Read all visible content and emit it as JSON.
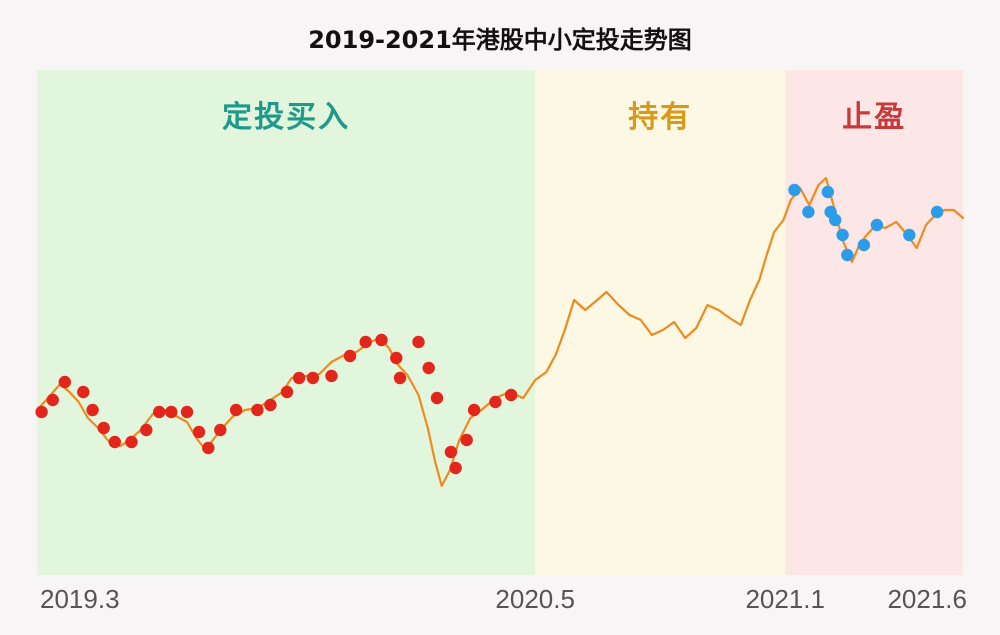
{
  "chart_data": {
    "type": "line",
    "title": "2019-2021年港股中小定投走势图",
    "x_ticks": [
      {
        "label": "2019.3",
        "x": 0
      },
      {
        "label": "2020.5",
        "x": 0.538
      },
      {
        "label": "2021.1",
        "x": 0.808
      },
      {
        "label": "2021.6",
        "x": 1
      }
    ],
    "zones": [
      {
        "label": "定投买入",
        "x_start": 0,
        "x_end": 0.538,
        "fill": "#e2f6de",
        "text_color": "#1f9a8a"
      },
      {
        "label": "持有",
        "x_start": 0.538,
        "x_end": 0.808,
        "fill": "#fdf8e4",
        "text_color": "#d99a1a"
      },
      {
        "label": "止盈",
        "x_start": 0.808,
        "x_end": 1,
        "fill": "#fde6e6",
        "text_color": "#c63a3a"
      }
    ],
    "series": [
      {
        "line_color": "#f08a1c",
        "points": [
          [
            0.0,
            410
          ],
          [
            0.012,
            398
          ],
          [
            0.025,
            384
          ],
          [
            0.035,
            392
          ],
          [
            0.045,
            402
          ],
          [
            0.055,
            418
          ],
          [
            0.066,
            428
          ],
          [
            0.078,
            442
          ],
          [
            0.09,
            446
          ],
          [
            0.1,
            440
          ],
          [
            0.112,
            430
          ],
          [
            0.125,
            414
          ],
          [
            0.138,
            410
          ],
          [
            0.15,
            416
          ],
          [
            0.162,
            422
          ],
          [
            0.172,
            438
          ],
          [
            0.182,
            450
          ],
          [
            0.19,
            440
          ],
          [
            0.2,
            428
          ],
          [
            0.212,
            416
          ],
          [
            0.225,
            410
          ],
          [
            0.238,
            408
          ],
          [
            0.252,
            400
          ],
          [
            0.265,
            392
          ],
          [
            0.275,
            378
          ],
          [
            0.29,
            376
          ],
          [
            0.305,
            374
          ],
          [
            0.318,
            362
          ],
          [
            0.332,
            355
          ],
          [
            0.345,
            352
          ],
          [
            0.358,
            343
          ],
          [
            0.37,
            338
          ],
          [
            0.38,
            348
          ],
          [
            0.39,
            365
          ],
          [
            0.4,
            375
          ],
          [
            0.412,
            395
          ],
          [
            0.422,
            428
          ],
          [
            0.43,
            462
          ],
          [
            0.437,
            486
          ],
          [
            0.446,
            470
          ],
          [
            0.456,
            440
          ],
          [
            0.468,
            418
          ],
          [
            0.48,
            410
          ],
          [
            0.495,
            398
          ],
          [
            0.51,
            392
          ],
          [
            0.525,
            398
          ],
          [
            0.538,
            380
          ],
          [
            0.55,
            372
          ],
          [
            0.56,
            355
          ],
          [
            0.57,
            330
          ],
          [
            0.58,
            300
          ],
          [
            0.592,
            310
          ],
          [
            0.605,
            300
          ],
          [
            0.615,
            292
          ],
          [
            0.628,
            305
          ],
          [
            0.64,
            315
          ],
          [
            0.652,
            320
          ],
          [
            0.664,
            335
          ],
          [
            0.676,
            330
          ],
          [
            0.688,
            322
          ],
          [
            0.7,
            338
          ],
          [
            0.712,
            328
          ],
          [
            0.724,
            305
          ],
          [
            0.736,
            310
          ],
          [
            0.748,
            318
          ],
          [
            0.76,
            325
          ],
          [
            0.77,
            300
          ],
          [
            0.78,
            280
          ],
          [
            0.788,
            255
          ],
          [
            0.796,
            232
          ],
          [
            0.806,
            220
          ],
          [
            0.814,
            200
          ],
          [
            0.824,
            188
          ],
          [
            0.834,
            205
          ],
          [
            0.844,
            185
          ],
          [
            0.852,
            178
          ],
          [
            0.86,
            205
          ],
          [
            0.87,
            240
          ],
          [
            0.88,
            262
          ],
          [
            0.888,
            245
          ],
          [
            0.896,
            235
          ],
          [
            0.906,
            225
          ],
          [
            0.916,
            228
          ],
          [
            0.928,
            222
          ],
          [
            0.94,
            235
          ],
          [
            0.95,
            248
          ],
          [
            0.96,
            225
          ],
          [
            0.97,
            215
          ],
          [
            0.98,
            210
          ],
          [
            0.99,
            210
          ],
          [
            1.0,
            218
          ]
        ],
        "buy_points": [
          [
            0.005,
            412
          ],
          [
            0.017,
            400
          ],
          [
            0.03,
            382
          ],
          [
            0.05,
            392
          ],
          [
            0.06,
            410
          ],
          [
            0.072,
            428
          ],
          [
            0.084,
            442
          ],
          [
            0.102,
            442
          ],
          [
            0.118,
            430
          ],
          [
            0.132,
            412
          ],
          [
            0.145,
            412
          ],
          [
            0.162,
            412
          ],
          [
            0.175,
            432
          ],
          [
            0.185,
            448
          ],
          [
            0.198,
            430
          ],
          [
            0.215,
            410
          ],
          [
            0.238,
            410
          ],
          [
            0.252,
            405
          ],
          [
            0.27,
            392
          ],
          [
            0.283,
            378
          ],
          [
            0.298,
            378
          ],
          [
            0.318,
            376
          ],
          [
            0.338,
            356
          ],
          [
            0.355,
            342
          ],
          [
            0.372,
            340
          ],
          [
            0.388,
            358
          ],
          [
            0.392,
            378
          ],
          [
            0.412,
            342
          ],
          [
            0.423,
            368
          ],
          [
            0.432,
            398
          ],
          [
            0.447,
            452
          ],
          [
            0.452,
            468
          ],
          [
            0.464,
            440
          ],
          [
            0.472,
            410
          ],
          [
            0.495,
            402
          ],
          [
            0.512,
            395
          ]
        ],
        "sell_points": [
          [
            0.818,
            190
          ],
          [
            0.833,
            212
          ],
          [
            0.854,
            192
          ],
          [
            0.857,
            212
          ],
          [
            0.862,
            220
          ],
          [
            0.87,
            235
          ],
          [
            0.875,
            255
          ],
          [
            0.893,
            245
          ],
          [
            0.907,
            225
          ],
          [
            0.942,
            235
          ],
          [
            0.972,
            212
          ]
        ]
      }
    ]
  }
}
